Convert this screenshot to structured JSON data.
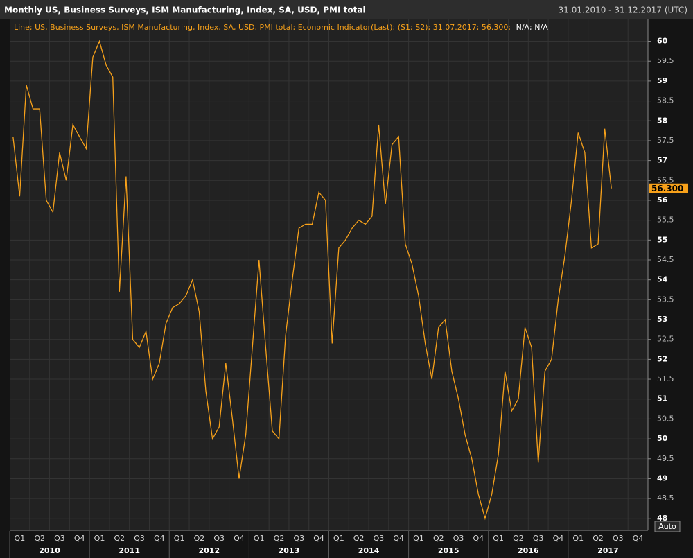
{
  "chart_data": {
    "type": "line",
    "title": "Monthly US, Business Surveys, ISM Manufacturing, Index, SA, USD, PMI total",
    "date_range": "31.01.2010 - 31.12.2017 (UTC)",
    "legend_suffix": "N/A; N/A",
    "auto_button": "Auto",
    "quarter_labels": [
      "Q1",
      "Q2",
      "Q3",
      "Q4"
    ],
    "years": [
      2010,
      2011,
      2012,
      2013,
      2014,
      2015,
      2016,
      2017
    ],
    "series": [
      {
        "name": "Line; US, Business Surveys, ISM Manufacturing, Index, SA, USD, PMI total; Economic Indicator(Last); (S1; S2); 31.07.2017; 56.300;",
        "color": "#f7a11a",
        "last_label": "56.300",
        "values": [
          57.6,
          56.1,
          58.9,
          58.3,
          58.3,
          56.0,
          55.7,
          57.2,
          56.5,
          57.9,
          57.6,
          57.3,
          59.6,
          60.0,
          59.4,
          59.1,
          53.7,
          56.6,
          52.5,
          52.3,
          52.7,
          51.5,
          51.9,
          52.9,
          53.3,
          53.4,
          53.6,
          54.0,
          53.2,
          51.2,
          50.0,
          50.3,
          51.9,
          50.5,
          49.0,
          50.1,
          52.3,
          54.5,
          52.3,
          50.2,
          50.0,
          52.6,
          54.0,
          55.3,
          55.4,
          55.4,
          56.2,
          56.0,
          52.4,
          54.8,
          55.0,
          55.3,
          55.5,
          55.4,
          55.6,
          57.9,
          55.9,
          57.4,
          57.6,
          54.9,
          54.4,
          53.6,
          52.4,
          51.5,
          52.8,
          53.0,
          51.7,
          51.0,
          50.1,
          49.5,
          48.6,
          48.0,
          48.6,
          49.6,
          51.7,
          50.7,
          51.0,
          52.8,
          52.3,
          49.4,
          51.7,
          52.0,
          53.5,
          54.6,
          56.0,
          57.7,
          57.2,
          54.8,
          54.9,
          57.8,
          56.3
        ]
      }
    ],
    "ylim": [
      47.7,
      60.55
    ],
    "yticks": [
      48,
      48.5,
      49,
      49.5,
      50,
      50.5,
      51,
      51.5,
      52,
      52.5,
      53,
      53.5,
      54,
      54.5,
      55,
      55.5,
      56,
      56.5,
      57,
      57.5,
      58,
      58.5,
      59,
      59.5,
      60
    ],
    "grid": true
  }
}
